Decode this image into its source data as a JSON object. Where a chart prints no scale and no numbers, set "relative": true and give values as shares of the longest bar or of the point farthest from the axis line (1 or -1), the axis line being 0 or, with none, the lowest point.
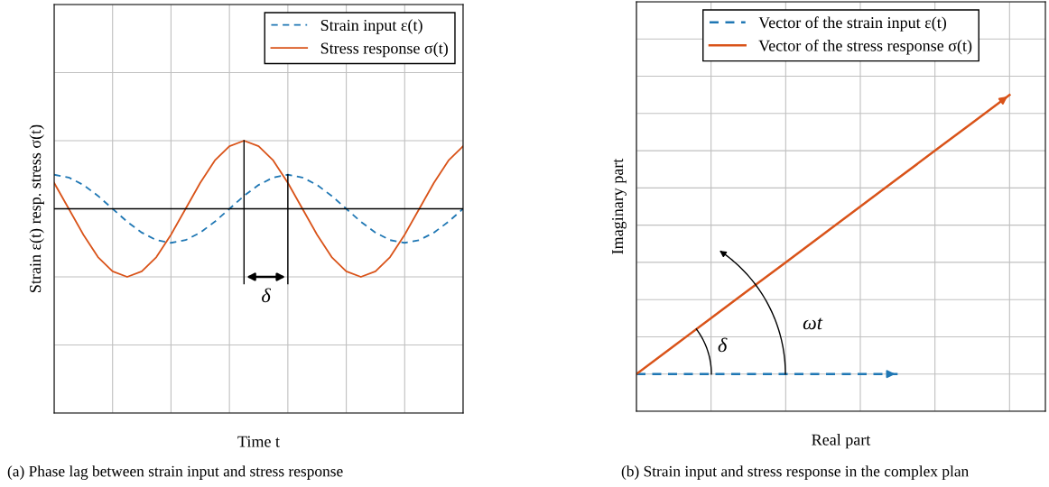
{
  "chart_data": [
    {
      "type": "line",
      "relative": true,
      "xlabel": "Time t",
      "ylabel": "Strain ε(t) resp. stress σ(t)",
      "categories": [
        null,
        null,
        null,
        null,
        null,
        null,
        null,
        null,
        null,
        null,
        null,
        null,
        null,
        null,
        null,
        null,
        null,
        null,
        null,
        null,
        null,
        null,
        null,
        null,
        null,
        null,
        null,
        null,
        null
      ],
      "series": [
        {
          "name": "Strain input ε(t)",
          "color": "#1f77b4",
          "line_style": "dashed",
          "values": [
            0.5,
            0.46,
            0.35,
            0.19,
            0,
            -0.19,
            -0.35,
            -0.46,
            -0.5,
            -0.46,
            -0.35,
            -0.19,
            0,
            0.19,
            0.35,
            0.46,
            0.5,
            0.46,
            0.35,
            0.19,
            0,
            -0.19,
            -0.35,
            -0.46,
            -0.5,
            -0.46,
            -0.35,
            -0.19,
            0
          ]
        },
        {
          "name": "Stress response σ(t)",
          "color": "#d95319",
          "line_style": "solid",
          "values": [
            0.38,
            0,
            -0.38,
            -0.71,
            -0.92,
            -1,
            -0.92,
            -0.71,
            -0.38,
            0,
            0.38,
            0.71,
            0.92,
            1,
            0.92,
            0.71,
            0.38,
            0,
            -0.38,
            -0.71,
            -0.92,
            -1,
            -0.92,
            -0.71,
            -0.38,
            0,
            0.38,
            0.71,
            0.92
          ]
        }
      ],
      "annotations": [
        "δ",
        "(a) Phase lag between strain input and stress response"
      ],
      "grid": true,
      "legend": "top right",
      "marker": "none"
    },
    {
      "type": "line",
      "relative": true,
      "xlabel": "Real part",
      "ylabel": "Imaginary part",
      "categories": [
        null,
        null,
        null,
        null,
        null,
        null,
        null,
        null,
        null,
        null,
        null
      ],
      "series": [
        {
          "name": "Vector of the strain input ε(t)",
          "color": "#1f77b4",
          "line_style": "dashed",
          "values": [
            0,
            0,
            0,
            0,
            0,
            0,
            0,
            0,
            null,
            null,
            null
          ]
        },
        {
          "name": "Vector of the stress response σ(t)",
          "color": "#d95319",
          "line_style": "solid",
          "values": [
            0,
            0.1,
            0.2,
            0.3,
            0.4,
            0.5,
            0.6,
            0.7,
            0.8,
            0.9,
            1
          ]
        }
      ],
      "annotations": [
        "δ",
        "ωt",
        "(b) Strain input and stress response in the complex plan"
      ],
      "grid": true,
      "legend": "top",
      "marker": "none"
    }
  ]
}
